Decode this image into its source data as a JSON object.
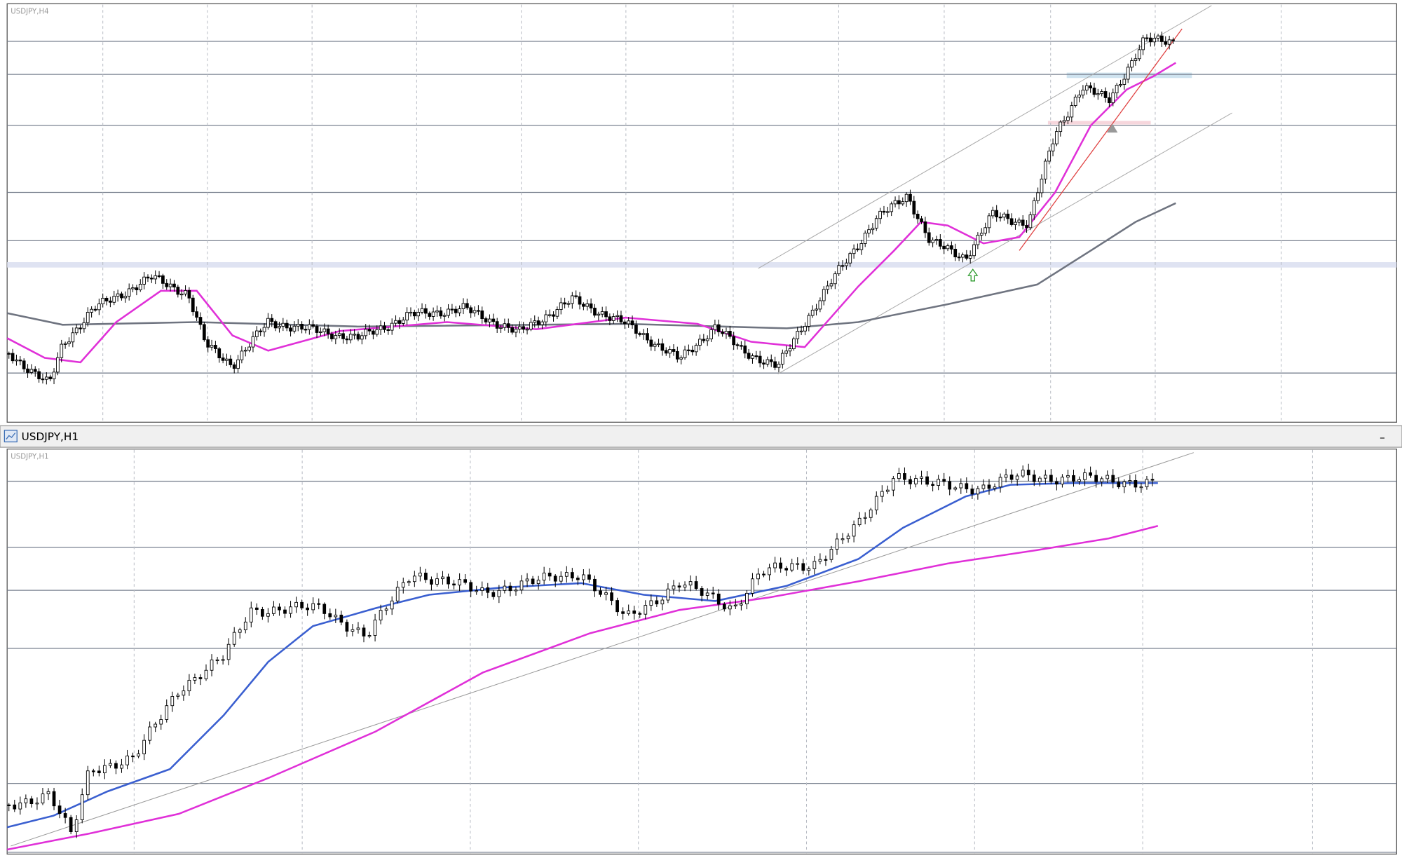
{
  "windows": [
    {
      "label": "USDJPY,H4"
    },
    {
      "title": "USDJPY,H1",
      "label": "USDJPY,H1",
      "minimize": "–"
    }
  ]
}
